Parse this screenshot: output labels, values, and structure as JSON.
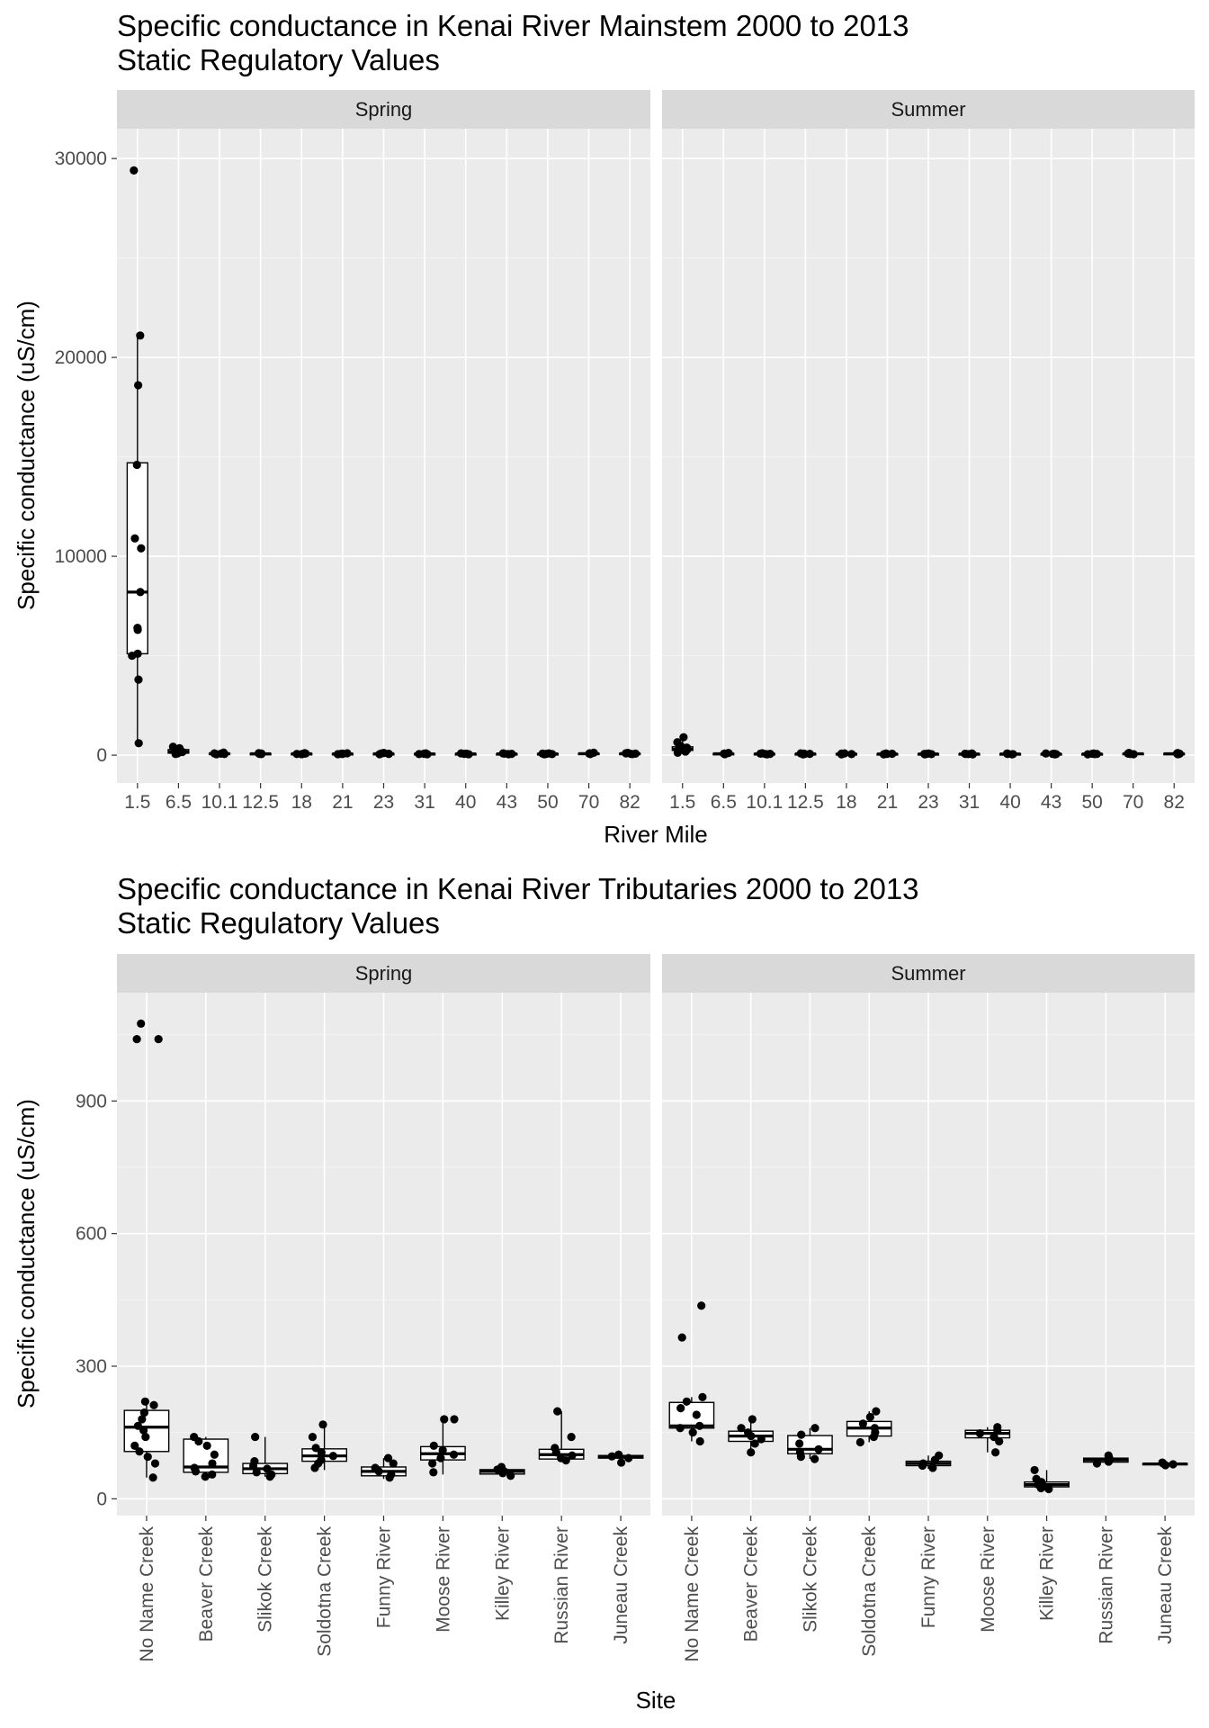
{
  "chart_data": [
    {
      "type": "boxplot",
      "title": "Specific conductance in Kenai River Mainstem  2000 to 2013",
      "subtitle": "Static Regulatory Values",
      "xlabel": "River Mile",
      "ylabel": "Specific conductance (uS/cm)",
      "ylim": [
        -1400,
        31500
      ],
      "yticks": [
        0,
        10000,
        20000,
        30000
      ],
      "categories": [
        "1.5",
        "6.5",
        "10.1",
        "12.5",
        "18",
        "21",
        "23",
        "31",
        "40",
        "43",
        "50",
        "70",
        "82"
      ],
      "facets": [
        {
          "name": "Spring",
          "series": [
            {
              "category": "1.5",
              "min": 600,
              "q1": 5100,
              "median": 8200,
              "q3": 14700,
              "max": 21100,
              "points": [
                29400,
                21100,
                18600,
                14600,
                10900,
                10400,
                8200,
                6400,
                6300,
                5100,
                5000,
                3800,
                600
              ]
            },
            {
              "category": "6.5",
              "min": 60,
              "q1": 100,
              "median": 170,
              "q3": 280,
              "max": 420,
              "points": [
                420,
                350,
                280,
                200,
                160,
                120,
                90,
                60
              ]
            },
            {
              "category": "10.1",
              "min": 40,
              "q1": 60,
              "median": 75,
              "q3": 95,
              "max": 130,
              "points": [
                130,
                110,
                90,
                75,
                60,
                45
              ]
            },
            {
              "category": "12.5",
              "min": 45,
              "q1": 60,
              "median": 72,
              "q3": 85,
              "max": 100,
              "points": [
                100,
                85,
                75,
                65,
                55
              ]
            },
            {
              "category": "18",
              "min": 45,
              "q1": 60,
              "median": 70,
              "q3": 82,
              "max": 100,
              "points": [
                100,
                80,
                70,
                60,
                50
              ]
            },
            {
              "category": "21",
              "min": 45,
              "q1": 58,
              "median": 68,
              "q3": 80,
              "max": 95,
              "points": [
                95,
                80,
                68,
                58,
                48
              ]
            },
            {
              "category": "23",
              "min": 45,
              "q1": 58,
              "median": 70,
              "q3": 82,
              "max": 110,
              "points": [
                110,
                85,
                70,
                58,
                48
              ]
            },
            {
              "category": "31",
              "min": 45,
              "q1": 55,
              "median": 65,
              "q3": 78,
              "max": 90,
              "points": [
                90,
                78,
                65,
                55,
                46
              ]
            },
            {
              "category": "40",
              "min": 45,
              "q1": 55,
              "median": 65,
              "q3": 75,
              "max": 90,
              "points": [
                90,
                75,
                65,
                55,
                46
              ]
            },
            {
              "category": "43",
              "min": 45,
              "q1": 55,
              "median": 65,
              "q3": 75,
              "max": 90,
              "points": [
                90,
                75,
                65,
                55,
                46
              ]
            },
            {
              "category": "50",
              "min": 45,
              "q1": 55,
              "median": 64,
              "q3": 75,
              "max": 88,
              "points": [
                88,
                75,
                64,
                55,
                46
              ]
            },
            {
              "category": "70",
              "min": 50,
              "q1": 65,
              "median": 78,
              "q3": 95,
              "max": 120,
              "points": [
                120,
                95,
                78,
                65,
                52
              ]
            },
            {
              "category": "82",
              "min": 50,
              "q1": 62,
              "median": 75,
              "q3": 92,
              "max": 115,
              "points": [
                115,
                92,
                75,
                62,
                52
              ]
            }
          ]
        },
        {
          "name": "Summer",
          "series": [
            {
              "category": "1.5",
              "min": 100,
              "q1": 240,
              "median": 300,
              "q3": 420,
              "max": 900,
              "points": [
                900,
                650,
                450,
                380,
                320,
                280,
                240,
                180,
                120
              ]
            },
            {
              "category": "6.5",
              "min": 45,
              "q1": 60,
              "median": 72,
              "q3": 85,
              "max": 110,
              "points": [
                110,
                85,
                72,
                60,
                48
              ]
            },
            {
              "category": "10.1",
              "min": 40,
              "q1": 55,
              "median": 65,
              "q3": 78,
              "max": 95,
              "points": [
                95,
                78,
                65,
                55,
                42
              ]
            },
            {
              "category": "12.5",
              "min": 40,
              "q1": 55,
              "median": 65,
              "q3": 76,
              "max": 90,
              "points": [
                90,
                76,
                65,
                55,
                42
              ]
            },
            {
              "category": "18",
              "min": 40,
              "q1": 55,
              "median": 63,
              "q3": 75,
              "max": 88,
              "points": [
                88,
                75,
                63,
                55,
                42
              ]
            },
            {
              "category": "21",
              "min": 40,
              "q1": 52,
              "median": 62,
              "q3": 72,
              "max": 85,
              "points": [
                85,
                72,
                62,
                52,
                42
              ]
            },
            {
              "category": "23",
              "min": 40,
              "q1": 52,
              "median": 62,
              "q3": 72,
              "max": 85,
              "points": [
                85,
                72,
                62,
                52,
                42
              ]
            },
            {
              "category": "31",
              "min": 40,
              "q1": 52,
              "median": 62,
              "q3": 72,
              "max": 85,
              "points": [
                85,
                72,
                62,
                52,
                42
              ]
            },
            {
              "category": "40",
              "min": 40,
              "q1": 52,
              "median": 62,
              "q3": 72,
              "max": 85,
              "points": [
                85,
                72,
                62,
                52,
                42
              ]
            },
            {
              "category": "43",
              "min": 40,
              "q1": 52,
              "median": 62,
              "q3": 72,
              "max": 85,
              "points": [
                85,
                72,
                62,
                52,
                42
              ]
            },
            {
              "category": "50",
              "min": 40,
              "q1": 52,
              "median": 62,
              "q3": 72,
              "max": 85,
              "points": [
                85,
                72,
                62,
                52,
                42
              ]
            },
            {
              "category": "70",
              "min": 45,
              "q1": 60,
              "median": 74,
              "q3": 90,
              "max": 110,
              "points": [
                110,
                90,
                74,
                60,
                47
              ]
            },
            {
              "category": "82",
              "min": 45,
              "q1": 58,
              "median": 72,
              "q3": 88,
              "max": 108,
              "points": [
                108,
                88,
                72,
                58,
                47
              ]
            }
          ]
        }
      ]
    },
    {
      "type": "boxplot",
      "title": "Specific conductance in Kenai River Tributaries  2000 to 2013",
      "subtitle": "Static Regulatory Values",
      "xlabel": "Site",
      "ylabel": "Specific conductance (uS/cm)",
      "ylim": [
        -38,
        1145
      ],
      "yticks": [
        0,
        300,
        600,
        900
      ],
      "categories": [
        "No Name Creek",
        "Beaver Creek",
        "Slikok Creek",
        "Soldotna Creek",
        "Funny River",
        "Moose River",
        "Killey River",
        "Russian River",
        "Juneau Creek"
      ],
      "facets": [
        {
          "name": "Spring",
          "series": [
            {
              "category": "No Name Creek",
              "min": 48,
              "q1": 107,
              "median": 162,
              "q3": 200,
              "max": 220,
              "points": [
                1075,
                1040,
                1040,
                220,
                212,
                195,
                180,
                165,
                155,
                140,
                120,
                107,
                95,
                80,
                48
              ]
            },
            {
              "category": "Beaver Creek",
              "min": 50,
              "q1": 60,
              "median": 72,
              "q3": 135,
              "max": 140,
              "points": [
                140,
                130,
                120,
                100,
                80,
                70,
                62,
                55,
                50
              ]
            },
            {
              "category": "Slikok Creek",
              "min": 50,
              "q1": 57,
              "median": 68,
              "q3": 80,
              "max": 140,
              "points": [
                140,
                85,
                75,
                68,
                60,
                55,
                50
              ]
            },
            {
              "category": "Soldotna Creek",
              "min": 65,
              "q1": 85,
              "median": 97,
              "q3": 113,
              "max": 168,
              "points": [
                168,
                140,
                115,
                105,
                97,
                88,
                80,
                70
              ]
            },
            {
              "category": "Funny River",
              "min": 45,
              "q1": 52,
              "median": 62,
              "q3": 72,
              "max": 92,
              "points": [
                92,
                80,
                70,
                62,
                55,
                48
              ]
            },
            {
              "category": "Moose River",
              "min": 55,
              "q1": 88,
              "median": 102,
              "q3": 118,
              "max": 180,
              "points": [
                180,
                180,
                120,
                110,
                100,
                92,
                80,
                60
              ]
            },
            {
              "category": "Killey River",
              "min": 50,
              "q1": 56,
              "median": 62,
              "q3": 66,
              "max": 72,
              "points": [
                72,
                66,
                62,
                58,
                52
              ]
            },
            {
              "category": "Russian River",
              "min": 85,
              "q1": 90,
              "median": 100,
              "q3": 112,
              "max": 198,
              "points": [
                198,
                140,
                115,
                105,
                98,
                92,
                87
              ]
            },
            {
              "category": "Juneau Creek",
              "min": 82,
              "q1": 92,
              "median": 96,
              "q3": 98,
              "max": 100,
              "points": [
                100,
                96,
                92,
                82
              ]
            }
          ]
        },
        {
          "name": "Summer",
          "series": [
            {
              "category": "No Name Creek",
              "min": 130,
              "q1": 160,
              "median": 165,
              "q3": 218,
              "max": 230,
              "points": [
                437,
                365,
                230,
                220,
                205,
                190,
                165,
                160,
                150,
                130
              ]
            },
            {
              "category": "Beaver Creek",
              "min": 105,
              "q1": 130,
              "median": 142,
              "q3": 153,
              "max": 180,
              "points": [
                180,
                160,
                150,
                142,
                135,
                125,
                105
              ]
            },
            {
              "category": "Slikok Creek",
              "min": 90,
              "q1": 102,
              "median": 112,
              "q3": 143,
              "max": 160,
              "points": [
                160,
                145,
                125,
                112,
                105,
                95,
                90
              ]
            },
            {
              "category": "Soldotna Creek",
              "min": 128,
              "q1": 142,
              "median": 160,
              "q3": 175,
              "max": 198,
              "points": [
                198,
                185,
                170,
                160,
                150,
                140,
                128
              ]
            },
            {
              "category": "Funny River",
              "min": 68,
              "q1": 75,
              "median": 80,
              "q3": 85,
              "max": 98,
              "points": [
                98,
                88,
                80,
                75,
                70
              ]
            },
            {
              "category": "Moose River",
              "min": 105,
              "q1": 138,
              "median": 148,
              "q3": 155,
              "max": 162,
              "points": [
                162,
                155,
                148,
                140,
                130,
                105
              ]
            },
            {
              "category": "Killey River",
              "min": 22,
              "q1": 27,
              "median": 32,
              "q3": 38,
              "max": 65,
              "points": [
                65,
                45,
                38,
                32,
                28,
                24,
                22
              ]
            },
            {
              "category": "Russian River",
              "min": 78,
              "q1": 83,
              "median": 88,
              "q3": 92,
              "max": 98,
              "points": [
                98,
                92,
                88,
                84,
                80
              ]
            },
            {
              "category": "Juneau Creek",
              "min": 74,
              "q1": 77,
              "median": 79,
              "q3": 80,
              "max": 82,
              "points": [
                82,
                80,
                78,
                76
              ]
            }
          ]
        }
      ]
    }
  ]
}
